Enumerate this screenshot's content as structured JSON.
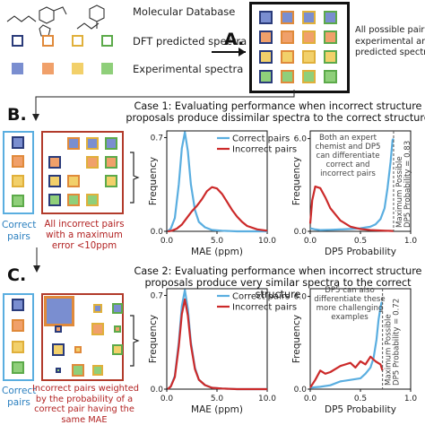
{
  "legend_top": {
    "molecular_db": "Molecular Database",
    "dft_spectra": "DFT predicted spectra",
    "exp_spectra": "Experimental spectra"
  },
  "labels": {
    "a": "A.",
    "b": "B.",
    "c": "C."
  },
  "all_pairs_text": [
    "All possible pairs",
    "experimental and",
    "predicted spectra"
  ],
  "case1": {
    "title": "Case 1: Evaluating performance when incorrect structure proposals produce dissimilar spectra to the correct structure",
    "correct_label": [
      "Correct",
      "pairs"
    ],
    "incorrect_label": [
      "All incorrect pairs",
      "with a maximum",
      "error <10ppm"
    ]
  },
  "case2": {
    "title": "Case 2: Evaluating performance when incorrect structure proposals produce very similar spectra to the correct structure",
    "correct_label": [
      "Correct",
      "pairs"
    ],
    "incorrect_label": [
      "Incorrect pairs weighted",
      "by the probability of a",
      "correct pair having the",
      "same MAE"
    ]
  },
  "annotations": {
    "b_dp5": [
      "Both an expert",
      "chemist and DP5",
      "can differentiate",
      "correct and",
      "incorrect pairs"
    ],
    "b_max": [
      "Maximum Possible",
      "DP5 Probability = 0.83"
    ],
    "c_dp5": [
      "DP5 can also",
      "differentiate these",
      "more challenging",
      "examples"
    ],
    "c_max": [
      "Maximum Possible",
      "DP5 Probability = 0.72"
    ]
  },
  "colors": {
    "correct": "#5aaee0",
    "incorrect": "#cc2a2a",
    "frame_blue": "#5aaee0",
    "frame_red": "#b23b2b"
  },
  "chart_data": [
    {
      "type": "line",
      "xlabel": "MAE (ppm)",
      "ylabel": "Frequency",
      "xlim": [
        0,
        10
      ],
      "ylim": [
        0,
        0.75
      ],
      "xticks": [
        "0.0",
        "5.0",
        "10.0"
      ],
      "yticks": [
        "0.0",
        "0.7"
      ],
      "series": [
        {
          "name": "Correct pairs",
          "x": [
            0.1,
            0.4,
            0.8,
            1.2,
            1.5,
            1.8,
            2.1,
            2.4,
            2.8,
            3.2,
            3.8,
            4.5,
            5.5,
            7,
            10
          ],
          "y": [
            0,
            0.02,
            0.1,
            0.35,
            0.62,
            0.74,
            0.6,
            0.35,
            0.16,
            0.07,
            0.03,
            0.01,
            0.005,
            0,
            0
          ]
        },
        {
          "name": "Incorrect pairs",
          "x": [
            0.1,
            0.5,
            1,
            1.5,
            2,
            2.5,
            3,
            3.5,
            4,
            4.5,
            5,
            5.5,
            6,
            6.5,
            7,
            7.5,
            8,
            9,
            10
          ],
          "y": [
            0,
            0.005,
            0.02,
            0.05,
            0.1,
            0.15,
            0.19,
            0.24,
            0.3,
            0.33,
            0.32,
            0.28,
            0.22,
            0.16,
            0.11,
            0.07,
            0.04,
            0.015,
            0.005
          ]
        }
      ],
      "legend": "top-right"
    },
    {
      "type": "line",
      "xlabel": "DP5 Probability",
      "ylabel": "Frequency",
      "xlim": [
        0,
        1
      ],
      "ylim": [
        0,
        6.5
      ],
      "xticks": [
        "0.0",
        "0.5",
        "1.0"
      ],
      "yticks": [
        "0.0",
        "6.0"
      ],
      "series": [
        {
          "name": "Correct pairs",
          "x": [
            0,
            0.05,
            0.1,
            0.2,
            0.3,
            0.4,
            0.5,
            0.6,
            0.65,
            0.7,
            0.74,
            0.77,
            0.8,
            0.82,
            0.83
          ],
          "y": [
            0.2,
            0.12,
            0.08,
            0.1,
            0.12,
            0.15,
            0.2,
            0.3,
            0.45,
            0.8,
            1.5,
            2.8,
            4.5,
            5.9,
            6.0
          ]
        },
        {
          "name": "Incorrect pairs",
          "x": [
            0,
            0.02,
            0.05,
            0.1,
            0.15,
            0.2,
            0.3,
            0.4,
            0.5,
            0.6,
            0.7,
            0.75,
            0.8,
            0.83
          ],
          "y": [
            0.5,
            2.0,
            2.9,
            2.8,
            2.2,
            1.5,
            0.7,
            0.3,
            0.15,
            0.08,
            0.05,
            0.04,
            0.03,
            0.02
          ]
        }
      ]
    },
    {
      "type": "line",
      "xlabel": "MAE (ppm)",
      "ylabel": "Frequency",
      "xlim": [
        0,
        10
      ],
      "ylim": [
        0,
        0.75
      ],
      "xticks": [
        "0.0",
        "5.0",
        "10.0"
      ],
      "yticks": [
        "0.0",
        "0.7"
      ],
      "series": [
        {
          "name": "Correct pairs",
          "x": [
            0.1,
            0.4,
            0.8,
            1.2,
            1.5,
            1.8,
            2.1,
            2.4,
            2.8,
            3.2,
            3.8,
            4.5,
            5.5,
            7,
            10
          ],
          "y": [
            0,
            0.02,
            0.1,
            0.35,
            0.62,
            0.74,
            0.6,
            0.35,
            0.16,
            0.07,
            0.03,
            0.01,
            0.005,
            0,
            0
          ]
        },
        {
          "name": "Incorrect pairs",
          "x": [
            0.1,
            0.4,
            0.8,
            1.2,
            1.5,
            1.8,
            2.1,
            2.4,
            2.8,
            3.2,
            3.8,
            4.5,
            5.5,
            7,
            10
          ],
          "y": [
            0,
            0.02,
            0.09,
            0.32,
            0.56,
            0.67,
            0.55,
            0.33,
            0.15,
            0.07,
            0.03,
            0.01,
            0.005,
            0,
            0
          ]
        }
      ],
      "legend": "top-right"
    },
    {
      "type": "line",
      "xlabel": "DP5 Probability",
      "ylabel": "Frequency",
      "xlim": [
        0,
        1
      ],
      "ylim": [
        0,
        6.5
      ],
      "xticks": [
        "0.0",
        "0.5",
        "1.0"
      ],
      "yticks": [
        "0.0",
        "6.0"
      ],
      "series": [
        {
          "name": "Correct pairs",
          "x": [
            0,
            0.1,
            0.2,
            0.3,
            0.4,
            0.5,
            0.55,
            0.6,
            0.63,
            0.66,
            0.68,
            0.7,
            0.71,
            0.72
          ],
          "y": [
            0.1,
            0.15,
            0.25,
            0.5,
            0.6,
            0.7,
            1.0,
            1.4,
            2.0,
            3.2,
            4.5,
            5.3,
            5.6,
            5.5
          ]
        },
        {
          "name": "Incorrect pairs",
          "x": [
            0,
            0.05,
            0.1,
            0.15,
            0.2,
            0.3,
            0.4,
            0.45,
            0.5,
            0.55,
            0.6,
            0.65,
            0.7,
            0.72
          ],
          "y": [
            0.1,
            0.6,
            1.2,
            1.0,
            1.1,
            1.5,
            1.7,
            1.4,
            1.8,
            1.6,
            2.1,
            1.8,
            1.6,
            1.2
          ]
        }
      ]
    }
  ]
}
